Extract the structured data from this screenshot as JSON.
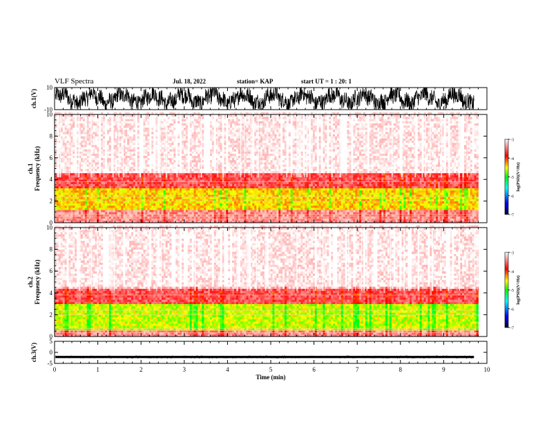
{
  "header": {
    "title": "VLF Spectra",
    "date": "Jul. 18, 2022",
    "station": "station= KAP",
    "start": "start  UT =   1 : 20: 1"
  },
  "chart_data": [
    {
      "type": "line",
      "panel": "ch1-waveform",
      "ylabel": "ch.1(V)",
      "ylim": [
        -10,
        10
      ],
      "yticks": [
        "10",
        "-10"
      ],
      "xlim": [
        0,
        10
      ],
      "style": "dense oscillating black trace filling most of the range"
    },
    {
      "type": "heatmap",
      "panel": "ch1-spectrogram",
      "ylabel": "ch.1",
      "ylabel2": "Frequency (kHz)",
      "ylim": [
        0,
        10
      ],
      "yticks": [
        "0",
        "2",
        "4",
        "6",
        "8",
        "10"
      ],
      "xlim": [
        0,
        9.8
      ],
      "colorbar": {
        "label": "log(PSD)(V²/Hz)",
        "range": [
          -7,
          -3
        ],
        "ticks": [
          "-3",
          "-4",
          "-5",
          "-6",
          "-7"
        ]
      },
      "bands": [
        {
          "from_khz": 0,
          "to_khz": 1.1,
          "level": -3.4
        },
        {
          "from_khz": 1.1,
          "to_khz": 3.2,
          "level": -4.4
        },
        {
          "from_khz": 3.2,
          "to_khz": 4.6,
          "level": -3.6
        },
        {
          "from_khz": 4.6,
          "to_khz": 10,
          "level": -3.2
        }
      ]
    },
    {
      "type": "heatmap",
      "panel": "ch2-spectrogram",
      "ylabel": "ch.2",
      "ylabel2": "Frequency (kHz)",
      "ylim": [
        0,
        10
      ],
      "yticks": [
        "0",
        "2",
        "4",
        "6",
        "8",
        "10"
      ],
      "xlim": [
        0,
        9.8
      ],
      "colorbar": {
        "label": "log(PSD)(V²/Hz)",
        "range": [
          -7,
          -3
        ],
        "ticks": [
          "-3",
          "-4",
          "-5",
          "-6",
          "-7"
        ]
      },
      "bands": [
        {
          "from_khz": 0,
          "to_khz": 0.6,
          "level": -3.4
        },
        {
          "from_khz": 0.6,
          "to_khz": 3.0,
          "level": -4.6
        },
        {
          "from_khz": 3.0,
          "to_khz": 4.4,
          "level": -3.6
        },
        {
          "from_khz": 4.4,
          "to_khz": 10,
          "level": -3.2
        }
      ]
    },
    {
      "type": "line",
      "panel": "ch3-waveform",
      "ylabel": "ch.3(V)",
      "ylim": [
        -5,
        5
      ],
      "yticks": [
        "5",
        "0",
        "-5"
      ],
      "xlim": [
        0,
        10
      ],
      "xlabel": "Time (min)",
      "xticks": [
        "0",
        "1",
        "2",
        "3",
        "4",
        "5",
        "6",
        "7",
        "8",
        "9",
        "10"
      ],
      "style": "thick flat black band near -2 V"
    }
  ],
  "colors": {
    "axis": "#000000",
    "colormap": [
      "#000033",
      "#0000ff",
      "#00ffff",
      "#00ff00",
      "#ffff00",
      "#ff0000",
      "#ffffff"
    ]
  }
}
